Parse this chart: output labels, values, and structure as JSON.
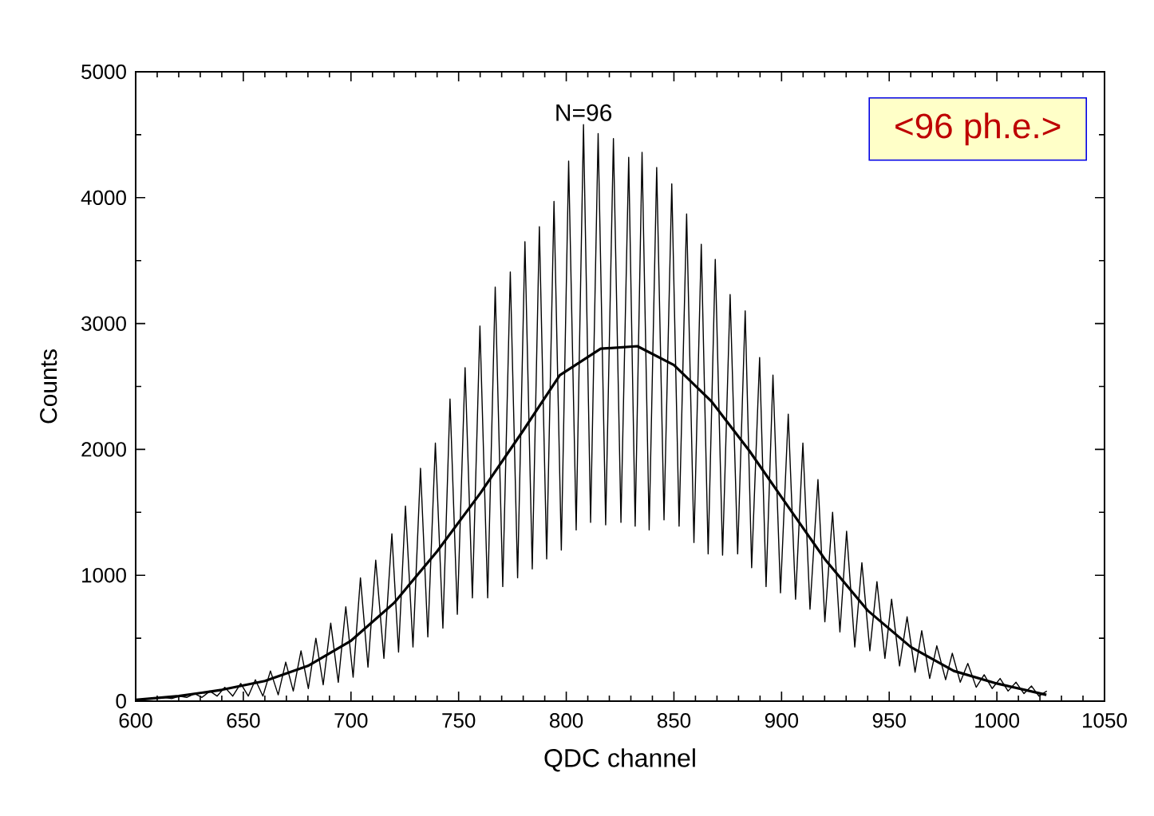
{
  "chart_data": {
    "type": "line",
    "xlabel": "QDC channel",
    "ylabel": "Counts",
    "xlim": [
      600,
      1050
    ],
    "ylim": [
      0,
      5000
    ],
    "xticks": [
      600,
      650,
      700,
      750,
      800,
      850,
      900,
      950,
      1000,
      1050
    ],
    "yticks": [
      0,
      1000,
      2000,
      3000,
      4000,
      5000
    ],
    "grid": false,
    "marker": "none",
    "line_style": "solid",
    "annotations": [
      {
        "text": "N=96",
        "x": 808,
        "y": 4580
      },
      "<96 ph.e.>"
    ],
    "series": [
      {
        "color": "#000000",
        "x": [
          600,
          613.3,
          616.7,
          620.4,
          623.7,
          627.4,
          630.8,
          634.5,
          637.8,
          641.4,
          645.1,
          648.8,
          652.3,
          655.6,
          659.1,
          662.6,
          666.2,
          669.7,
          673.2,
          676.8,
          680.2,
          683.7,
          687.1,
          690.6,
          694.1,
          697.6,
          701.0,
          704.4,
          707.9,
          711.5,
          715.3,
          719.0,
          722.1,
          725.3,
          728.8,
          732.3,
          735.7,
          739.2,
          742.7,
          746.0,
          749.4,
          753.0,
          756.4,
          759.9,
          763.5,
          767.0,
          770.5,
          774.0,
          777.4,
          780.8,
          784.2,
          787.5,
          790.9,
          794.3,
          797.7,
          801.1,
          804.6,
          808.0,
          811.3,
          814.8,
          818.3,
          821.9,
          825.4,
          829.0,
          832.0,
          835.2,
          838.5,
          842.0,
          845.4,
          849.0,
          852.4,
          855.9,
          859.3,
          862.7,
          865.9,
          869.2,
          872.6,
          876.1,
          879.6,
          883.1,
          886.1,
          889.8,
          892.8,
          896.0,
          899.5,
          903.1,
          906.5,
          909.9,
          913.2,
          916.9,
          920.1,
          923.7,
          927.1,
          930.2,
          934.0,
          937.3,
          941.0,
          944.3,
          948.0,
          951.1,
          954.8,
          958.3,
          962.0,
          965.1,
          968.8,
          972.1,
          976.2,
          979.3,
          983.0,
          986.5,
          990.4,
          994.1,
          997.8,
          1001.5,
          1005.2,
          1008.9,
          1012.6,
          1016.1,
          1019.5,
          1023.2
        ],
        "values": [
          10,
          30,
          20,
          40,
          30,
          60,
          30,
          80,
          40,
          110,
          40,
          140,
          40,
          170,
          40,
          240,
          50,
          310,
          80,
          400,
          100,
          500,
          130,
          620,
          150,
          750,
          190,
          980,
          270,
          1120,
          340,
          1330,
          390,
          1550,
          430,
          1850,
          510,
          2050,
          580,
          2400,
          690,
          2650,
          820,
          2980,
          820,
          3290,
          910,
          3410,
          980,
          3650,
          1050,
          3770,
          1130,
          3970,
          1200,
          4290,
          1360,
          4580,
          1420,
          4510,
          1400,
          4470,
          1420,
          4320,
          1390,
          4360,
          1360,
          4240,
          1440,
          4110,
          1390,
          3870,
          1260,
          3630,
          1170,
          3510,
          1160,
          3230,
          1170,
          3100,
          1060,
          2730,
          910,
          2590,
          860,
          2280,
          810,
          2050,
          730,
          1760,
          630,
          1500,
          550,
          1350,
          430,
          1100,
          400,
          950,
          340,
          810,
          280,
          670,
          230,
          560,
          180,
          440,
          170,
          380,
          150,
          300,
          110,
          210,
          100,
          180,
          80,
          150,
          60,
          120,
          40,
          80
        ]
      },
      {
        "color": "#000000",
        "x": [
          600,
          620,
          640,
          660,
          680,
          700,
          720,
          740,
          760,
          780,
          797,
          816,
          833,
          850,
          867.5,
          885,
          900,
          920,
          940,
          960,
          980,
          1000,
          1023
        ],
        "values": [
          10,
          40,
          90,
          160,
          280,
          480,
          780,
          1190,
          1650,
          2150,
          2590,
          2800,
          2820,
          2670,
          2380,
          1990,
          1620,
          1130,
          720,
          430,
          240,
          140,
          50
        ]
      }
    ]
  }
}
